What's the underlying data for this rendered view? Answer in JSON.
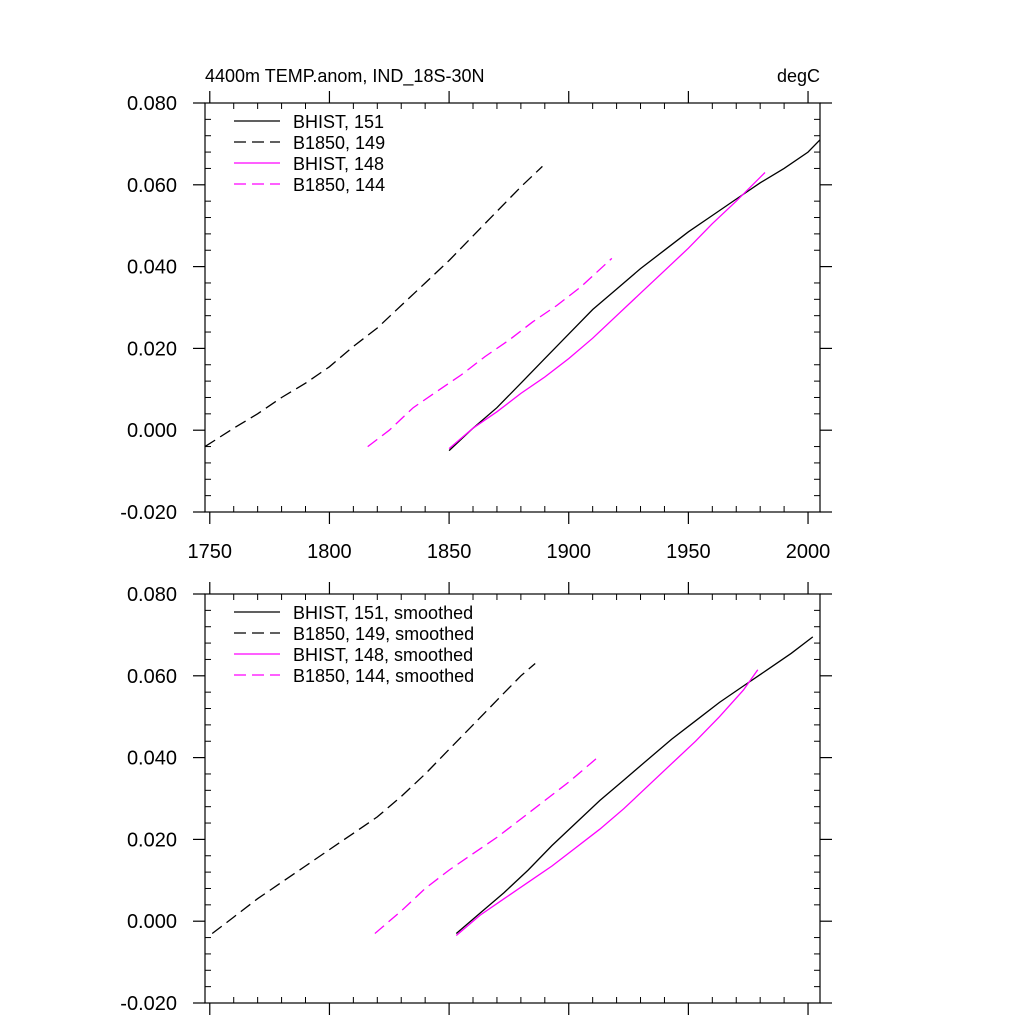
{
  "chart_data": [
    {
      "type": "line",
      "title": "4400m TEMP.anom, IND_18S-30N",
      "units": "degC",
      "xlim": [
        1748,
        2005
      ],
      "ylim": [
        -0.02,
        0.08
      ],
      "x_ticks": [
        1750,
        1800,
        1850,
        1900,
        1950,
        2000
      ],
      "x_tick_labels": [
        "1750",
        "1800",
        "1850",
        "1900",
        "1950",
        "2000"
      ],
      "y_ticks": [
        -0.02,
        0.0,
        0.02,
        0.04,
        0.06,
        0.08
      ],
      "y_tick_labels": [
        "-0.020",
        "0.000",
        "0.020",
        "0.040",
        "0.060",
        "0.080"
      ],
      "legend_position": "top-left",
      "grid": false,
      "series": [
        {
          "name": "BHIST, 151",
          "color": "#000000",
          "dash": "solid",
          "x": [
            1850,
            1860,
            1870,
            1880,
            1890,
            1900,
            1910,
            1920,
            1930,
            1940,
            1950,
            1960,
            1970,
            1980,
            1990,
            2000,
            2005
          ],
          "y": [
            -0.005,
            0.0005,
            0.0055,
            0.0115,
            0.0175,
            0.0235,
            0.0295,
            0.0345,
            0.0395,
            0.044,
            0.0485,
            0.0525,
            0.0565,
            0.0605,
            0.064,
            0.068,
            0.071
          ]
        },
        {
          "name": "B1850, 149",
          "color": "#000000",
          "dash": "dashed",
          "x": [
            1748,
            1760,
            1770,
            1780,
            1790,
            1800,
            1810,
            1820,
            1830,
            1840,
            1850,
            1860,
            1870,
            1880,
            1889
          ],
          "y": [
            -0.004,
            0.0005,
            0.004,
            0.008,
            0.0115,
            0.0155,
            0.0205,
            0.025,
            0.0305,
            0.036,
            0.0415,
            0.0475,
            0.0535,
            0.0595,
            0.0645
          ]
        },
        {
          "name": "BHIST, 148",
          "color": "#ff00ff",
          "dash": "solid",
          "x": [
            1850,
            1860,
            1870,
            1880,
            1890,
            1900,
            1910,
            1920,
            1930,
            1940,
            1950,
            1960,
            1970,
            1982
          ],
          "y": [
            -0.0045,
            0.0005,
            0.0045,
            0.009,
            0.013,
            0.0175,
            0.0225,
            0.028,
            0.0335,
            0.039,
            0.0445,
            0.0505,
            0.056,
            0.063
          ]
        },
        {
          "name": "B1850, 144",
          "color": "#ff00ff",
          "dash": "dashed",
          "x": [
            1816,
            1825,
            1835,
            1845,
            1855,
            1865,
            1875,
            1885,
            1895,
            1905,
            1918
          ],
          "y": [
            -0.004,
            0.0,
            0.0055,
            0.0095,
            0.0135,
            0.018,
            0.022,
            0.0265,
            0.0305,
            0.035,
            0.042
          ]
        }
      ]
    },
    {
      "type": "line",
      "xlim": [
        1748,
        2005
      ],
      "ylim": [
        -0.02,
        0.08
      ],
      "x_ticks": [
        1750,
        1800,
        1850,
        1900,
        1950,
        2000
      ],
      "y_ticks": [
        -0.02,
        0.0,
        0.02,
        0.04,
        0.06,
        0.08
      ],
      "y_tick_labels": [
        "-0.020",
        "0.000",
        "0.020",
        "0.040",
        "0.060",
        "0.080"
      ],
      "legend_position": "top-left",
      "grid": false,
      "series": [
        {
          "name": "BHIST, 151, smoothed",
          "color": "#000000",
          "dash": "solid",
          "x": [
            1853,
            1863,
            1873,
            1883,
            1893,
            1903,
            1913,
            1923,
            1933,
            1943,
            1953,
            1963,
            1973,
            1983,
            1993,
            2002
          ],
          "y": [
            -0.003,
            0.002,
            0.007,
            0.0125,
            0.0185,
            0.024,
            0.0295,
            0.0345,
            0.0395,
            0.0445,
            0.049,
            0.0535,
            0.0575,
            0.0615,
            0.0655,
            0.0695
          ]
        },
        {
          "name": "B1850, 149, smoothed",
          "color": "#000000",
          "dash": "dashed",
          "x": [
            1751,
            1760,
            1770,
            1780,
            1790,
            1800,
            1810,
            1820,
            1830,
            1840,
            1850,
            1860,
            1870,
            1880,
            1886
          ],
          "y": [
            -0.003,
            0.001,
            0.0055,
            0.0095,
            0.0135,
            0.0175,
            0.0215,
            0.0255,
            0.0305,
            0.036,
            0.042,
            0.048,
            0.054,
            0.06,
            0.063
          ]
        },
        {
          "name": "BHIST, 148, smoothed",
          "color": "#ff00ff",
          "dash": "solid",
          "x": [
            1853,
            1863,
            1873,
            1883,
            1893,
            1903,
            1913,
            1923,
            1933,
            1943,
            1953,
            1963,
            1973,
            1979
          ],
          "y": [
            -0.0035,
            0.0015,
            0.0055,
            0.0095,
            0.0135,
            0.018,
            0.0225,
            0.0275,
            0.033,
            0.0385,
            0.044,
            0.05,
            0.0565,
            0.0615
          ]
        },
        {
          "name": "B1850, 144, smoothed",
          "color": "#ff00ff",
          "dash": "dashed",
          "x": [
            1819,
            1830,
            1840,
            1850,
            1860,
            1870,
            1880,
            1890,
            1900,
            1912
          ],
          "y": [
            -0.003,
            0.0025,
            0.008,
            0.0125,
            0.0165,
            0.0205,
            0.025,
            0.0295,
            0.034,
            0.04
          ]
        }
      ]
    }
  ]
}
